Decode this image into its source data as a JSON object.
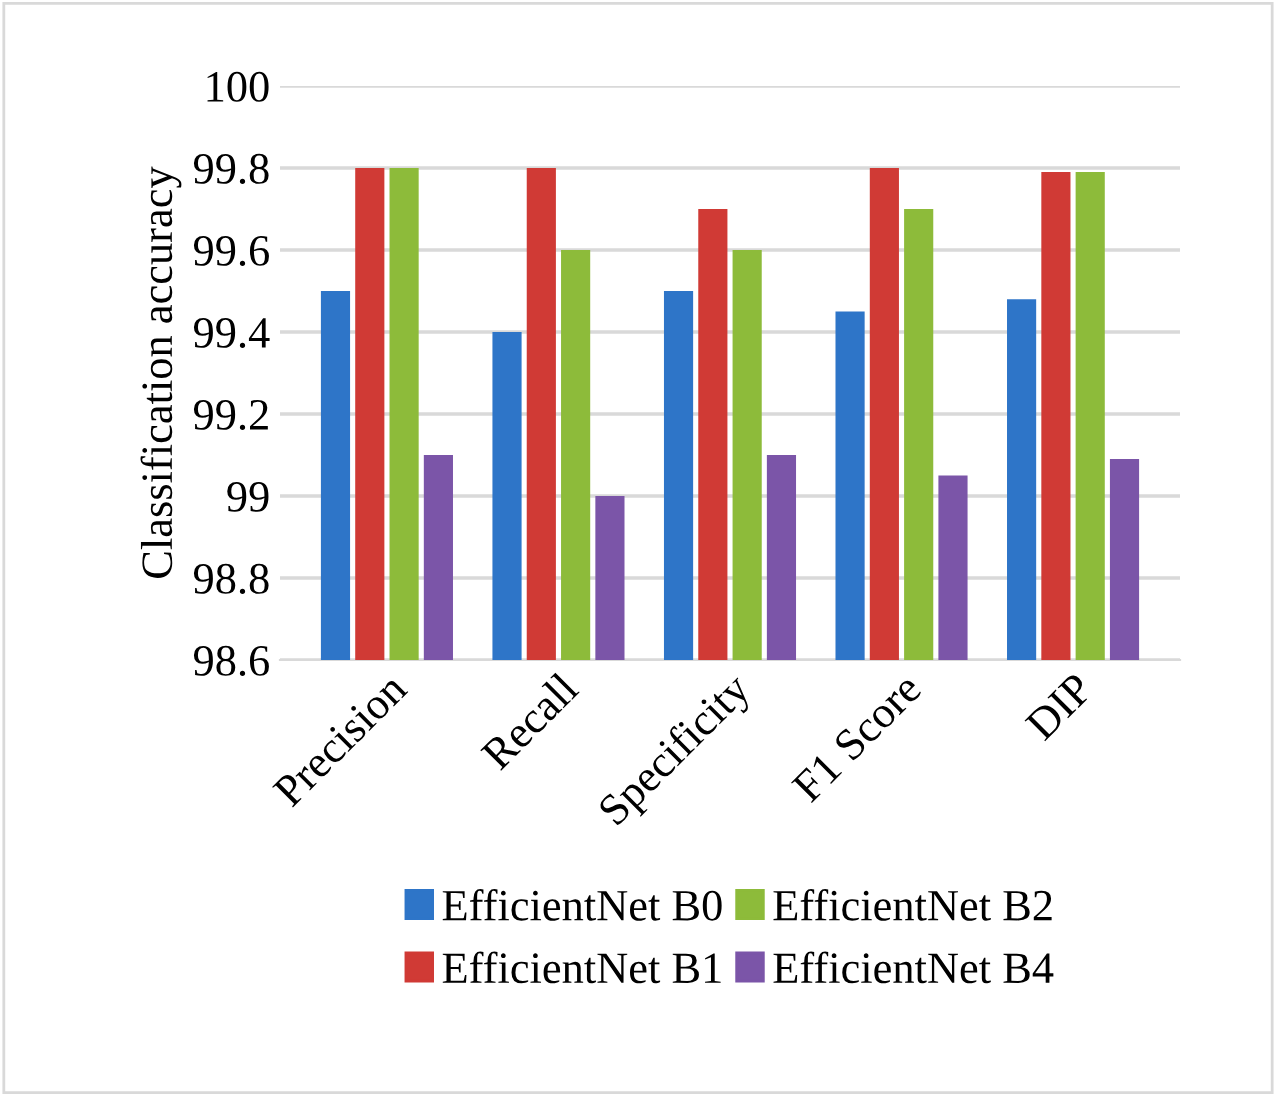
{
  "chart_data": {
    "type": "bar",
    "ylabel": "Classification accuracy",
    "categories": [
      "Precision",
      "Recall",
      "Specificity",
      "F1 Score",
      "DIP"
    ],
    "series": [
      {
        "name": "EfficientNet B0",
        "color": "#2e75c8",
        "values": [
          99.5,
          99.4,
          99.5,
          99.45,
          99.48
        ]
      },
      {
        "name": "EfficientNet B1",
        "color": "#d03a35",
        "values": [
          99.8,
          99.8,
          99.7,
          99.8,
          99.79
        ]
      },
      {
        "name": "EfficientNet B2",
        "color": "#8dbb3a",
        "values": [
          99.8,
          99.6,
          99.6,
          99.7,
          99.79
        ]
      },
      {
        "name": "EfficientNet B4",
        "color": "#7b55a8",
        "values": [
          99.1,
          99.0,
          99.1,
          99.05,
          99.09
        ]
      }
    ],
    "ylim": [
      98.6,
      100
    ],
    "yticks": [
      98.6,
      98.8,
      99,
      99.2,
      99.4,
      99.6,
      99.8,
      100
    ],
    "grid": "y",
    "legend": "bottom"
  }
}
